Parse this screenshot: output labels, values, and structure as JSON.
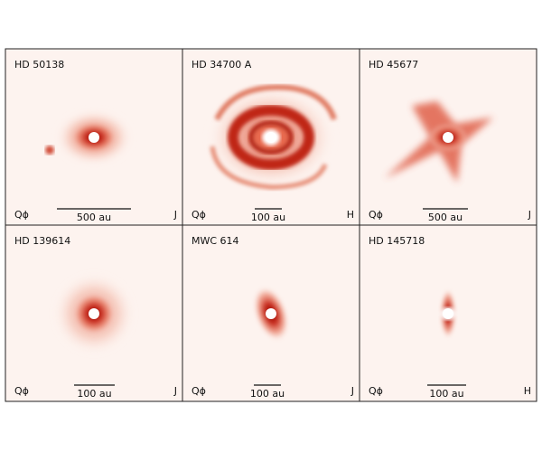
{
  "panels": [
    {
      "name": "HD 50138",
      "label": "Qϕ",
      "scale": "500 au",
      "band": "J"
    },
    {
      "name": "HD 34700 A",
      "label": "Qϕ",
      "scale": "100 au",
      "band": "H"
    },
    {
      "name": "HD 45677",
      "label": "Qϕ",
      "scale": "500 au",
      "band": "J"
    },
    {
      "name": "HD 139614",
      "label": "Qϕ",
      "scale": "100 au",
      "band": "J"
    },
    {
      "name": "MWC 614",
      "label": "Qϕ",
      "scale": "100 au",
      "band": "J"
    },
    {
      "name": "HD 145718",
      "label": "Qϕ",
      "scale": "100 au",
      "band": "H"
    }
  ]
}
